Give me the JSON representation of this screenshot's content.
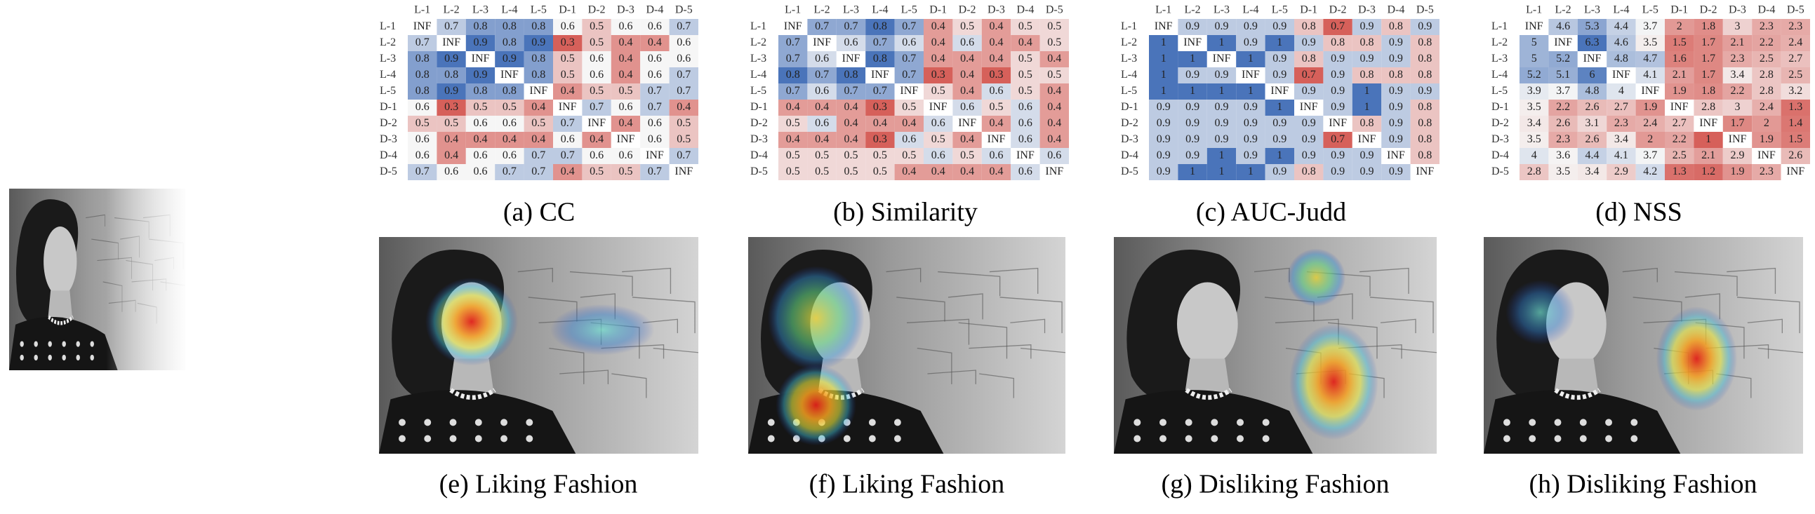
{
  "labels": [
    "L-1",
    "L-2",
    "L-3",
    "L-4",
    "L-5",
    "D-1",
    "D-2",
    "D-3",
    "D-4",
    "D-5"
  ],
  "matrices": [
    {
      "caption": "(a) CC",
      "cells": [
        [
          "INF",
          0.7,
          0.8,
          0.8,
          0.8,
          0.6,
          0.5,
          0.6,
          0.6,
          0.7
        ],
        [
          0.7,
          "INF",
          0.9,
          0.8,
          0.9,
          0.3,
          0.5,
          0.4,
          0.4,
          0.6
        ],
        [
          0.8,
          0.9,
          "INF",
          0.9,
          0.8,
          0.5,
          0.6,
          0.4,
          0.6,
          0.6
        ],
        [
          0.8,
          0.8,
          0.9,
          "INF",
          0.8,
          0.5,
          0.6,
          0.4,
          0.6,
          0.7
        ],
        [
          0.8,
          0.9,
          0.8,
          0.8,
          "INF",
          0.4,
          0.5,
          0.5,
          0.7,
          0.7
        ],
        [
          0.6,
          0.3,
          0.5,
          0.5,
          0.4,
          "INF",
          0.7,
          0.6,
          0.7,
          0.4
        ],
        [
          0.5,
          0.5,
          0.6,
          0.6,
          0.5,
          0.7,
          "INF",
          0.4,
          0.6,
          0.5
        ],
        [
          0.6,
          0.4,
          0.4,
          0.4,
          0.4,
          0.6,
          0.4,
          "INF",
          0.6,
          0.5
        ],
        [
          0.6,
          0.4,
          0.6,
          0.6,
          0.7,
          0.7,
          0.6,
          0.6,
          "INF",
          0.7
        ],
        [
          0.7,
          0.6,
          0.6,
          0.7,
          0.7,
          0.4,
          0.5,
          0.5,
          0.7,
          "INF"
        ]
      ]
    },
    {
      "caption": "(b) Similarity",
      "cells": [
        [
          "INF",
          0.7,
          0.7,
          0.8,
          0.7,
          0.4,
          0.5,
          0.4,
          0.5,
          0.5
        ],
        [
          0.7,
          "INF",
          0.6,
          0.7,
          0.6,
          0.4,
          0.6,
          0.4,
          0.4,
          0.5
        ],
        [
          0.7,
          0.6,
          "INF",
          0.8,
          0.7,
          0.4,
          0.4,
          0.4,
          0.5,
          0.4
        ],
        [
          0.8,
          0.7,
          0.8,
          "INF",
          0.7,
          0.3,
          0.4,
          0.3,
          0.5,
          0.5
        ],
        [
          0.7,
          0.6,
          0.7,
          0.7,
          "INF",
          0.5,
          0.4,
          0.6,
          0.5,
          0.4
        ],
        [
          0.4,
          0.4,
          0.4,
          0.3,
          0.5,
          "INF",
          0.6,
          0.5,
          0.6,
          0.4
        ],
        [
          0.5,
          0.6,
          0.4,
          0.4,
          0.4,
          0.6,
          "INF",
          0.4,
          0.6,
          0.4
        ],
        [
          0.4,
          0.4,
          0.4,
          0.3,
          0.6,
          0.5,
          0.4,
          "INF",
          0.6,
          0.4
        ],
        [
          0.5,
          0.5,
          0.5,
          0.5,
          0.5,
          0.6,
          0.5,
          0.6,
          "INF",
          0.6
        ],
        [
          0.5,
          0.5,
          0.5,
          0.5,
          0.4,
          0.4,
          0.4,
          0.4,
          0.6,
          "INF"
        ]
      ]
    },
    {
      "caption": "(c) AUC-Judd",
      "cells": [
        [
          "INF",
          0.9,
          0.9,
          0.9,
          0.9,
          0.8,
          0.7,
          0.9,
          0.8,
          0.9
        ],
        [
          1,
          "INF",
          1,
          0.9,
          1,
          0.9,
          0.8,
          0.8,
          0.9,
          0.8
        ],
        [
          1,
          1,
          "INF",
          1,
          0.9,
          0.8,
          0.9,
          0.9,
          0.9,
          0.8
        ],
        [
          1,
          0.9,
          0.9,
          "INF",
          0.9,
          0.7,
          0.9,
          0.8,
          0.8,
          0.8
        ],
        [
          1,
          1,
          1,
          1,
          "INF",
          0.9,
          0.9,
          1,
          0.9,
          0.9
        ],
        [
          0.9,
          0.9,
          0.9,
          0.9,
          1,
          "INF",
          0.9,
          1,
          0.9,
          0.8
        ],
        [
          0.9,
          0.9,
          0.9,
          0.9,
          0.9,
          0.9,
          "INF",
          0.8,
          0.9,
          0.8
        ],
        [
          0.9,
          0.9,
          0.9,
          0.9,
          0.9,
          0.9,
          0.7,
          "INF",
          0.9,
          0.8
        ],
        [
          0.9,
          0.9,
          1,
          0.9,
          1,
          0.9,
          0.9,
          0.9,
          "INF",
          0.8
        ],
        [
          0.9,
          1,
          1,
          1,
          0.9,
          0.8,
          0.9,
          0.9,
          0.9,
          "INF"
        ]
      ]
    },
    {
      "caption": "(d) NSS",
      "cells": [
        [
          "INF",
          4.6,
          5.3,
          4.4,
          3.7,
          2,
          1.8,
          3,
          2.3,
          2.3
        ],
        [
          5,
          "INF",
          6.3,
          4.6,
          3.5,
          1.5,
          1.7,
          2.1,
          2.2,
          2.4
        ],
        [
          5,
          5.2,
          "INF",
          4.8,
          4.7,
          1.6,
          1.7,
          2.3,
          2.5,
          2.7
        ],
        [
          5.2,
          5.1,
          6,
          "INF",
          4.1,
          2.1,
          1.7,
          3.4,
          2.8,
          2.5
        ],
        [
          3.9,
          3.7,
          4.8,
          4,
          "INF",
          1.9,
          1.8,
          2.2,
          2.8,
          3.2
        ],
        [
          3.5,
          2.2,
          2.6,
          2.7,
          1.9,
          "INF",
          2.8,
          3,
          2.4,
          1.3
        ],
        [
          3.4,
          2.6,
          3.1,
          2.3,
          2.4,
          2.7,
          "INF",
          1.7,
          2,
          1.4
        ],
        [
          3.5,
          2.3,
          2.6,
          3.4,
          2,
          2.2,
          1,
          "INF",
          1.9,
          1.5
        ],
        [
          4,
          3.6,
          4.4,
          4.1,
          3.7,
          2.5,
          2.1,
          2.9,
          "INF",
          2.6
        ],
        [
          2.8,
          3.5,
          3.4,
          2.9,
          4.2,
          1.3,
          1.2,
          1.9,
          2.3,
          "INF"
        ]
      ]
    }
  ],
  "images": [
    {
      "caption": "(e) Liking Fashion"
    },
    {
      "caption": "(f) Liking Fashion"
    },
    {
      "caption": "(g) Disliking Fashion"
    },
    {
      "caption": "(h) Disliking Fashion"
    }
  ]
}
